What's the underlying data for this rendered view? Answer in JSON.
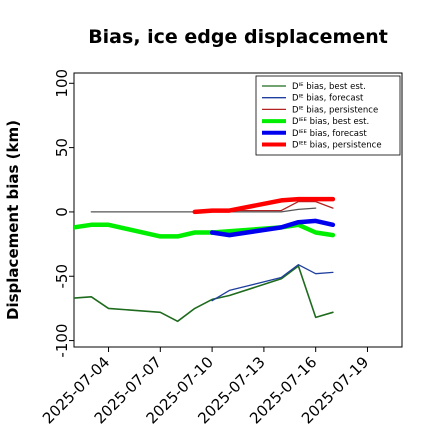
{
  "chart_data": {
    "type": "line",
    "title": "Bias, ice edge displacement",
    "ylabel": "Displacement bias (km)",
    "xlabel": "",
    "ylim": [
      -105,
      108
    ],
    "xlim": [
      "2025-07-02",
      "2025-07-21"
    ],
    "x_ticks": [
      "2025-07-04",
      "2025-07-07",
      "2025-07-10",
      "2025-07-13",
      "2025-07-16",
      "2025-07-19"
    ],
    "x_tick_highlight": {
      "label": "2025-07-10",
      "color": "#228B22"
    },
    "y_ticks": [
      100,
      50,
      0,
      -50,
      -100
    ],
    "grid": false,
    "legend_position": "top-right",
    "series": [
      {
        "name": "Dᴵᴱ bias, best est.",
        "color": "#1e6b1e",
        "width": 1.6,
        "points": [
          [
            "2025-07-01",
            -68
          ],
          [
            "2025-07-03",
            -66
          ],
          [
            "2025-07-04",
            -75
          ],
          [
            "2025-07-07",
            -78
          ],
          [
            "2025-07-08",
            -85
          ],
          [
            "2025-07-09",
            -75
          ],
          [
            "2025-07-10",
            -68
          ],
          [
            "2025-07-11",
            -65
          ],
          [
            "2025-07-14",
            -52
          ],
          [
            "2025-07-15",
            -42
          ],
          [
            "2025-07-16",
            -82
          ],
          [
            "2025-07-17",
            -78
          ]
        ]
      },
      {
        "name": "Dᴵᴱ bias, forecast",
        "color": "#1f3f9e",
        "width": 1.3,
        "points": [
          [
            "2025-07-10",
            -69
          ],
          [
            "2025-07-11",
            -61
          ],
          [
            "2025-07-14",
            -51
          ],
          [
            "2025-07-15",
            -41
          ],
          [
            "2025-07-16",
            -48
          ],
          [
            "2025-07-17",
            -47
          ]
        ]
      },
      {
        "name": "Dᴵᴱ bias, persistence",
        "color": "#b22222",
        "width": 1.3,
        "points": [
          [
            "2025-07-10",
            1
          ],
          [
            "2025-07-14",
            1
          ],
          [
            "2025-07-15",
            8
          ],
          [
            "2025-07-16",
            8
          ],
          [
            "2025-07-17",
            3
          ]
        ]
      },
      {
        "name": "Dᴵᴱ bias, persistence (black)",
        "legend": false,
        "color": "#555555",
        "width": 1.3,
        "points": [
          [
            "2025-07-03",
            0
          ],
          [
            "2025-07-04",
            0
          ],
          [
            "2025-07-07",
            0
          ],
          [
            "2025-07-10",
            0
          ],
          [
            "2025-07-14",
            0
          ],
          [
            "2025-07-15",
            2
          ],
          [
            "2025-07-16",
            3
          ]
        ]
      },
      {
        "name": "Dᴵᴱᴱ bias, best est.",
        "color": "#00ee00",
        "width": 4.5,
        "points": [
          [
            "2025-07-01",
            -14
          ],
          [
            "2025-07-03",
            -10
          ],
          [
            "2025-07-04",
            -10
          ],
          [
            "2025-07-07",
            -19
          ],
          [
            "2025-07-08",
            -19
          ],
          [
            "2025-07-09",
            -16
          ],
          [
            "2025-07-10",
            -16
          ],
          [
            "2025-07-14",
            -12
          ],
          [
            "2025-07-15",
            -10
          ],
          [
            "2025-07-16",
            -16
          ],
          [
            "2025-07-17",
            -18
          ]
        ]
      },
      {
        "name": "Dᴵᴱᴱ bias, forecast",
        "color": "#0000ee",
        "width": 4.5,
        "points": [
          [
            "2025-07-10",
            -16
          ],
          [
            "2025-07-11",
            -18
          ],
          [
            "2025-07-14",
            -12
          ],
          [
            "2025-07-15",
            -8
          ],
          [
            "2025-07-16",
            -7
          ],
          [
            "2025-07-17",
            -10
          ]
        ]
      },
      {
        "name": "Dᴵᴱᴱ bias, persistence",
        "color": "#ff0000",
        "width": 4.5,
        "points": [
          [
            "2025-07-09",
            0
          ],
          [
            "2025-07-10",
            1
          ],
          [
            "2025-07-11",
            1
          ],
          [
            "2025-07-14",
            9
          ],
          [
            "2025-07-15",
            10
          ],
          [
            "2025-07-16",
            10
          ],
          [
            "2025-07-17",
            10
          ]
        ]
      }
    ],
    "thin_connectors": [
      {
        "color": "#00cc00",
        "from": [
          "2025-07-04",
          -10
        ],
        "to": [
          "2025-07-07",
          -19
        ]
      },
      {
        "color": "#00cc00",
        "from": [
          "2025-07-10",
          -16
        ],
        "to": [
          "2025-07-14",
          -12
        ]
      },
      {
        "color": "#0000cc",
        "from": [
          "2025-07-11",
          -18
        ],
        "to": [
          "2025-07-14",
          -12
        ]
      },
      {
        "color": "#1e6b1e",
        "from": [
          "2025-07-04",
          -75
        ],
        "to": [
          "2025-07-07",
          -78
        ]
      },
      {
        "color": "#1e6b1e",
        "from": [
          "2025-07-11",
          -65
        ],
        "to": [
          "2025-07-14",
          -52
        ]
      }
    ]
  },
  "legend": {
    "entries": [
      {
        "label": "Dᴵᴱ bias, best est.",
        "color": "#1e6b1e",
        "width": 1.3
      },
      {
        "label": "Dᴵᴱ bias, forecast",
        "color": "#1f3f9e",
        "width": 1.3
      },
      {
        "label": "Dᴵᴱ bias, persistence",
        "color": "#b22222",
        "width": 1.3
      },
      {
        "label": "Dᴵᴱᴱ bias, best est.",
        "color": "#00ee00",
        "width": 4
      },
      {
        "label": "Dᴵᴱᴱ bias, forecast",
        "color": "#0000ee",
        "width": 4
      },
      {
        "label": "Dᴵᴱᴱ bias, persistence",
        "color": "#ff0000",
        "width": 4
      }
    ]
  }
}
